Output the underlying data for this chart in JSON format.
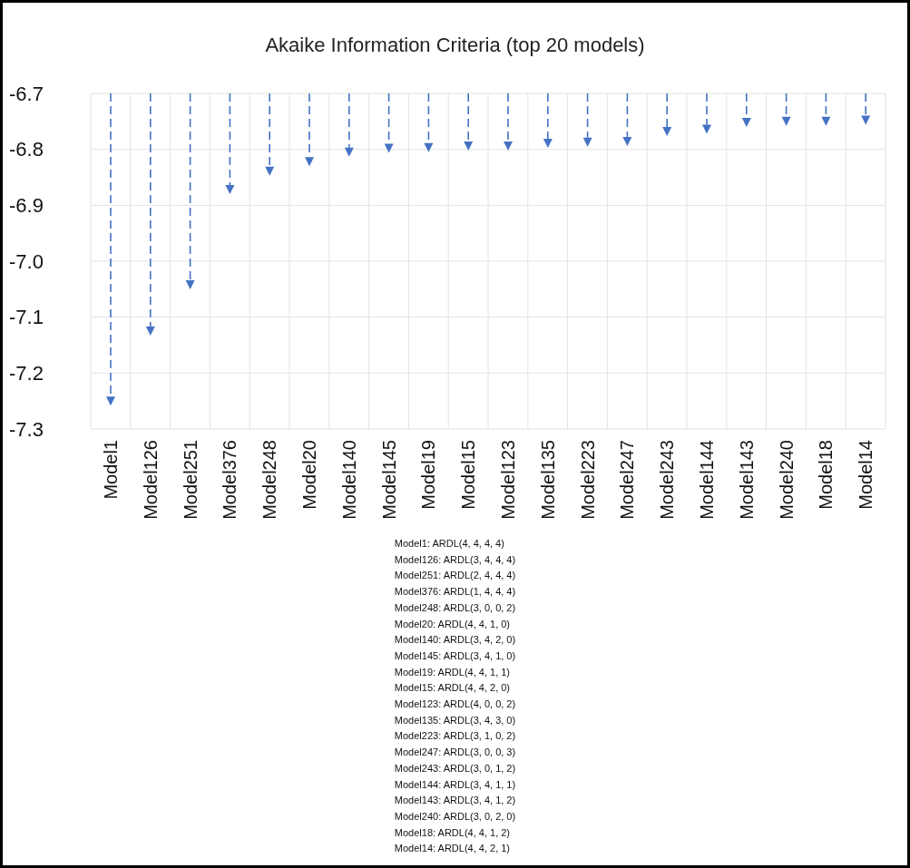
{
  "chart_data": {
    "type": "lollipop",
    "title": "Akaike Information Criteria (top 20 models)",
    "categories": [
      "Model1",
      "Model126",
      "Model251",
      "Model376",
      "Model248",
      "Model20",
      "Model140",
      "Model145",
      "Model19",
      "Model15",
      "Model123",
      "Model135",
      "Model223",
      "Model247",
      "Model243",
      "Model144",
      "Model143",
      "Model240",
      "Model18",
      "Model14"
    ],
    "values": [
      -7.25,
      -7.125,
      -7.042,
      -6.872,
      -6.839,
      -6.822,
      -6.805,
      -6.798,
      -6.797,
      -6.794,
      -6.794,
      -6.789,
      -6.787,
      -6.786,
      -6.768,
      -6.764,
      -6.752,
      -6.75,
      -6.75,
      -6.748
    ],
    "color": "#4472c4",
    "marker": "triangle",
    "line_style": "dashed",
    "ylim": [
      -7.3,
      -6.7
    ],
    "yticks": [
      -7.3,
      -7.2,
      -7.1,
      {
        "value": -7,
        "label": "-7.0"
      },
      -6.9,
      -6.8,
      -6.7
    ],
    "grid": true,
    "annotations": [
      "Model1: ARDL(4, 4, 4, 4)",
      "Model126: ARDL(3, 4, 4, 4)",
      "Model251: ARDL(2, 4, 4, 4)",
      "Model376: ARDL(1, 4, 4, 4)",
      "Model248: ARDL(3, 0, 0, 2)",
      "Model20: ARDL(4, 4, 1, 0)",
      "Model140: ARDL(3, 4, 2, 0)",
      "Model145: ARDL(3, 4, 1, 0)",
      "Model19: ARDL(4, 4, 1, 1)",
      "Model15: ARDL(4, 4, 2, 0)",
      "Model123: ARDL(4, 0, 0, 2)",
      "Model135: ARDL(3, 4, 3, 0)",
      "Model223: ARDL(3, 1, 0, 2)",
      "Model247: ARDL(3, 0, 0, 3)",
      "Model243: ARDL(3, 0, 1, 2)",
      "Model144: ARDL(3, 4, 1, 1)",
      "Model143: ARDL(3, 4, 1, 2)",
      "Model240: ARDL(3, 0, 2, 0)",
      "Model18: ARDL(4, 4, 1, 2)",
      "Model14: ARDL(4, 4, 2, 1)"
    ]
  }
}
